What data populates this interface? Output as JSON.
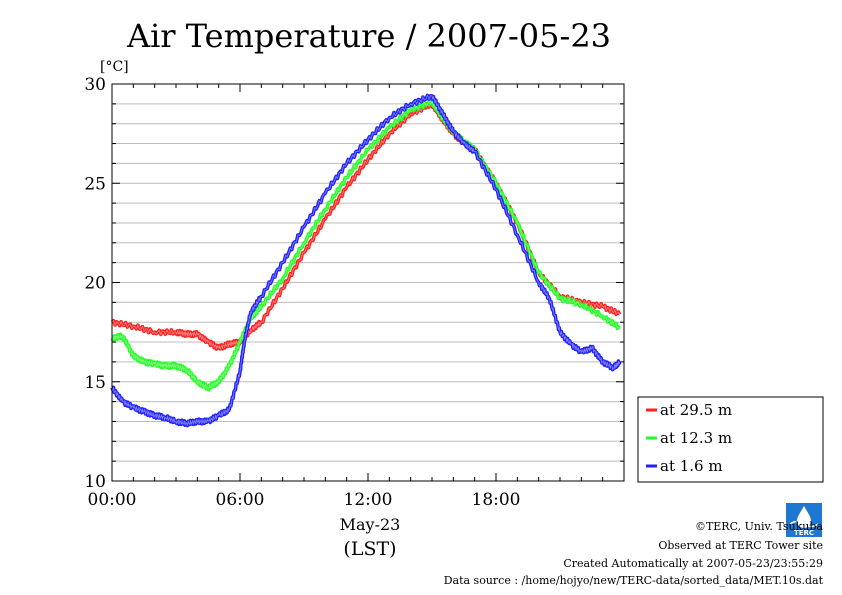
{
  "chart_data": {
    "type": "line",
    "title": "Air Temperature / 2007-05-23",
    "ylabel": "[°C]",
    "xlabel": "May-23",
    "xlabel2": "(LST)",
    "xlim": [
      0,
      24
    ],
    "ylim": [
      10,
      30
    ],
    "yticks": [
      10,
      15,
      20,
      25,
      30
    ],
    "ytick_labels": [
      "10",
      "15",
      "20",
      "25",
      "30"
    ],
    "xticks": [
      0,
      6,
      12,
      18
    ],
    "xtick_labels": [
      "00:00",
      "06:00",
      "12:00",
      "18:00"
    ],
    "grid": true,
    "legend_position": "right",
    "series": [
      {
        "name": "at 29.5 m",
        "color": "#ff2020",
        "x": [
          0.0,
          1.0,
          2.0,
          3.0,
          3.5,
          4.0,
          4.5,
          5.0,
          5.5,
          6.0,
          6.5,
          7.0,
          8.0,
          9.0,
          10.0,
          11.0,
          12.0,
          13.0,
          14.0,
          15.0,
          15.5,
          16.0,
          16.5,
          17.0,
          18.0,
          19.0,
          20.0,
          21.0,
          22.0,
          23.0,
          23.8
        ],
        "y": [
          18.0,
          17.8,
          17.5,
          17.5,
          17.4,
          17.4,
          17.0,
          16.7,
          16.9,
          17.0,
          17.6,
          18.0,
          19.7,
          21.5,
          23.2,
          24.8,
          26.2,
          27.5,
          28.5,
          29.0,
          28.2,
          27.5,
          27.0,
          26.7,
          25.0,
          23.0,
          20.5,
          19.3,
          19.0,
          18.8,
          18.4
        ]
      },
      {
        "name": "at 12.3 m",
        "color": "#20ff20",
        "x": [
          0.0,
          0.5,
          1.0,
          1.5,
          2.0,
          2.5,
          3.0,
          3.5,
          4.0,
          4.5,
          5.0,
          5.5,
          6.0,
          6.5,
          7.0,
          8.0,
          9.0,
          10.0,
          11.0,
          12.0,
          13.0,
          14.0,
          15.0,
          15.5,
          16.0,
          16.5,
          17.0,
          18.0,
          19.0,
          20.0,
          21.0,
          22.0,
          23.0,
          23.8
        ],
        "y": [
          17.2,
          17.3,
          16.3,
          16.0,
          15.9,
          15.8,
          15.8,
          15.6,
          15.0,
          14.7,
          15.0,
          15.8,
          17.0,
          18.2,
          18.8,
          20.2,
          22.0,
          23.7,
          25.3,
          26.7,
          27.8,
          28.7,
          29.1,
          28.3,
          27.6,
          27.1,
          26.7,
          25.0,
          23.0,
          20.5,
          19.2,
          18.9,
          18.3,
          17.7
        ]
      },
      {
        "name": "at 1.6 m",
        "color": "#2020ff",
        "x": [
          0.0,
          0.5,
          1.0,
          1.5,
          2.0,
          2.5,
          3.0,
          3.5,
          4.0,
          4.5,
          5.0,
          5.5,
          6.0,
          6.2,
          6.5,
          7.0,
          8.0,
          9.0,
          10.0,
          11.0,
          12.0,
          13.0,
          14.0,
          15.0,
          15.5,
          16.0,
          16.5,
          17.0,
          18.0,
          19.0,
          20.0,
          20.5,
          21.0,
          21.5,
          22.0,
          22.5,
          23.0,
          23.5,
          23.8
        ],
        "y": [
          14.7,
          14.0,
          13.7,
          13.5,
          13.3,
          13.2,
          13.0,
          12.9,
          13.0,
          13.0,
          13.3,
          13.6,
          15.5,
          17.0,
          18.5,
          19.3,
          21.0,
          22.8,
          24.5,
          26.0,
          27.2,
          28.3,
          29.0,
          29.4,
          28.5,
          27.6,
          27.0,
          26.6,
          24.7,
          22.4,
          20.0,
          19.2,
          17.5,
          16.9,
          16.5,
          16.7,
          16.0,
          15.7,
          16.0
        ]
      }
    ]
  },
  "credits": {
    "copyright": "©TERC, Univ. Tsukuba",
    "observed": "Observed at TERC Tower site",
    "created": "Created Automatically at 2007-05-23/23:55:29",
    "source": "Data source : /home/hojyo/new/TERC-data/sorted_data/MET.10s.dat"
  },
  "logo": {
    "text": "TERC",
    "icon": "terc-logo-icon"
  }
}
